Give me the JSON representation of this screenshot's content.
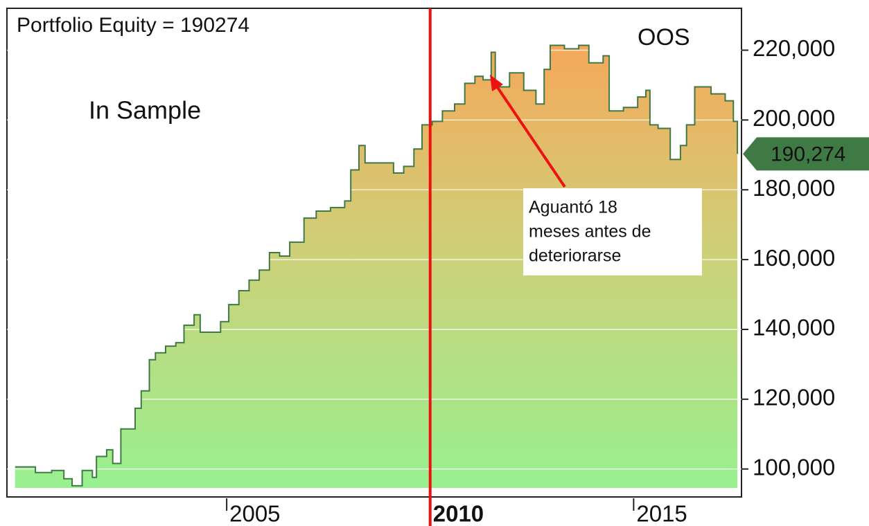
{
  "chart_data": {
    "type": "area",
    "title": "Portfolio Equity = 190274",
    "in_sample_label": "In Sample",
    "oos_label": "OOS",
    "note": [
      "Aguantó 18",
      "meses antes de",
      "deteriorarse"
    ],
    "divider_x": 2010,
    "line_color": "#3f7a45",
    "divider_color": "#ee1111",
    "last_value_label": "190,274",
    "xlim": [
      1999.6,
      2017.65
    ],
    "ylim": [
      92000,
      232000
    ],
    "xticks": [
      2005,
      2010,
      2015
    ],
    "yticks": [
      {
        "value": 100000,
        "label": "100,000"
      },
      {
        "value": 120000,
        "label": "120,000"
      },
      {
        "value": 140000,
        "label": "140,000"
      },
      {
        "value": 160000,
        "label": "160,000"
      },
      {
        "value": 180000,
        "label": "180,000"
      },
      {
        "value": 200000,
        "label": "200,000"
      },
      {
        "value": 220000,
        "label": "220,000"
      }
    ],
    "grid": true,
    "x": [
      1999.8,
      2000.25,
      2000.3,
      2000.7,
      2001.0,
      2001.2,
      2001.45,
      2001.7,
      2001.8,
      2002.05,
      2002.2,
      2002.4,
      2002.75,
      2002.9,
      2003.1,
      2003.25,
      2003.5,
      2003.75,
      2003.95,
      2004.2,
      2004.35,
      2004.6,
      2004.85,
      2005.05,
      2005.3,
      2005.55,
      2005.8,
      2006.05,
      2006.3,
      2006.55,
      2006.9,
      2007.2,
      2007.55,
      2007.9,
      2008.05,
      2008.25,
      2008.4,
      2008.85,
      2009.1,
      2009.35,
      2009.6,
      2009.8,
      2010.05,
      2010.3,
      2010.6,
      2010.85,
      2011.1,
      2011.3,
      2011.5,
      2011.6,
      2011.95,
      2012.3,
      2012.6,
      2012.8,
      2012.95,
      2013.3,
      2013.65,
      2013.9,
      2014.25,
      2014.4,
      2014.75,
      2015.1,
      2015.3,
      2015.4,
      2015.6,
      2015.9,
      2016.15,
      2016.3,
      2016.5,
      2016.9,
      2017.25,
      2017.45,
      2017.55
    ],
    "values": [
      100600,
      100600,
      99000,
      99600,
      97200,
      95200,
      99600,
      97600,
      103600,
      105500,
      101600,
      111500,
      117400,
      122400,
      131300,
      133300,
      135200,
      136200,
      141200,
      144200,
      139200,
      139200,
      142200,
      147100,
      151100,
      154100,
      157000,
      162000,
      161000,
      165000,
      171900,
      173900,
      174900,
      176800,
      185700,
      192700,
      187700,
      187700,
      184800,
      186700,
      191700,
      198600,
      199600,
      202600,
      204600,
      210500,
      212500,
      211500,
      219400,
      209500,
      213500,
      208500,
      204600,
      214500,
      221400,
      220400,
      221400,
      216400,
      218400,
      202600,
      203600,
      206600,
      208500,
      198600,
      197600,
      188700,
      192700,
      198600,
      209500,
      207500,
      205500,
      199600,
      190274
    ]
  }
}
